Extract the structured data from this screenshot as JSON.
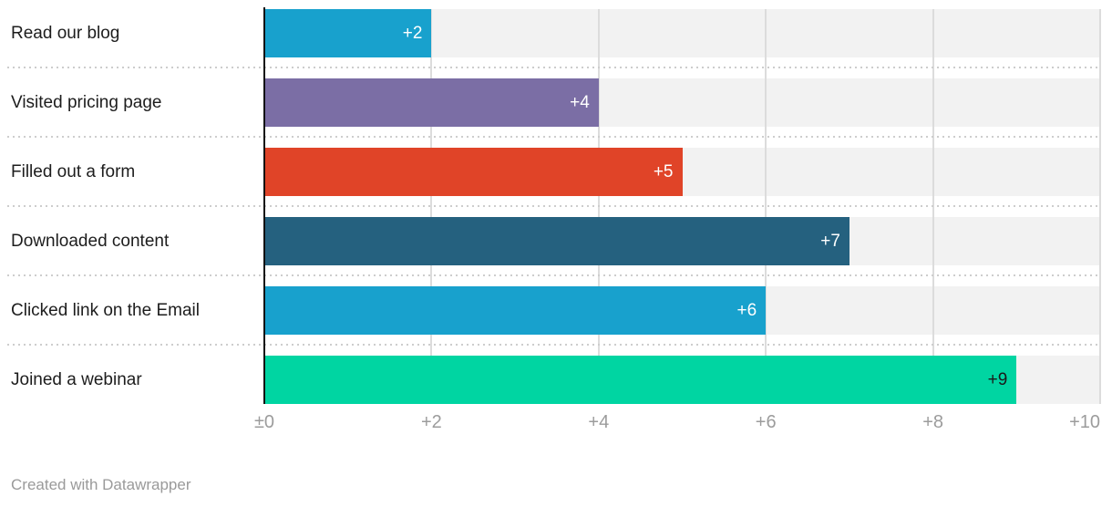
{
  "chart_data": {
    "type": "bar",
    "orientation": "horizontal",
    "title": "",
    "categories": [
      "Read our blog",
      "Visited pricing page",
      "Filled out a form",
      "Downloaded content",
      "Clicked link on the Email",
      "Joined a webinar"
    ],
    "values": [
      2,
      4,
      5,
      7,
      6,
      9
    ],
    "value_labels": [
      "+2",
      "+4",
      "+5",
      "+7",
      "+6",
      "+9"
    ],
    "bar_colors": [
      "#18a1cd",
      "#7b6ea5",
      "#e04428",
      "#25617f",
      "#18a1cd",
      "#00d5a2"
    ],
    "value_label_colors": [
      "#ffffff",
      "#ffffff",
      "#ffffff",
      "#ffffff",
      "#ffffff",
      "#1a1a1a"
    ],
    "x_axis": {
      "range": [
        0,
        10
      ],
      "ticks": [
        0,
        2,
        4,
        6,
        8,
        10
      ],
      "tick_labels": [
        "±0",
        "+2",
        "+4",
        "+6",
        "+8",
        "+10"
      ]
    },
    "grid": true,
    "row_background_color": "#f2f2f2",
    "gridline_color": "#dcdcdc",
    "baseline_color": "#111111",
    "legend_position": "none"
  },
  "footer": {
    "credit": "Created with Datawrapper"
  }
}
